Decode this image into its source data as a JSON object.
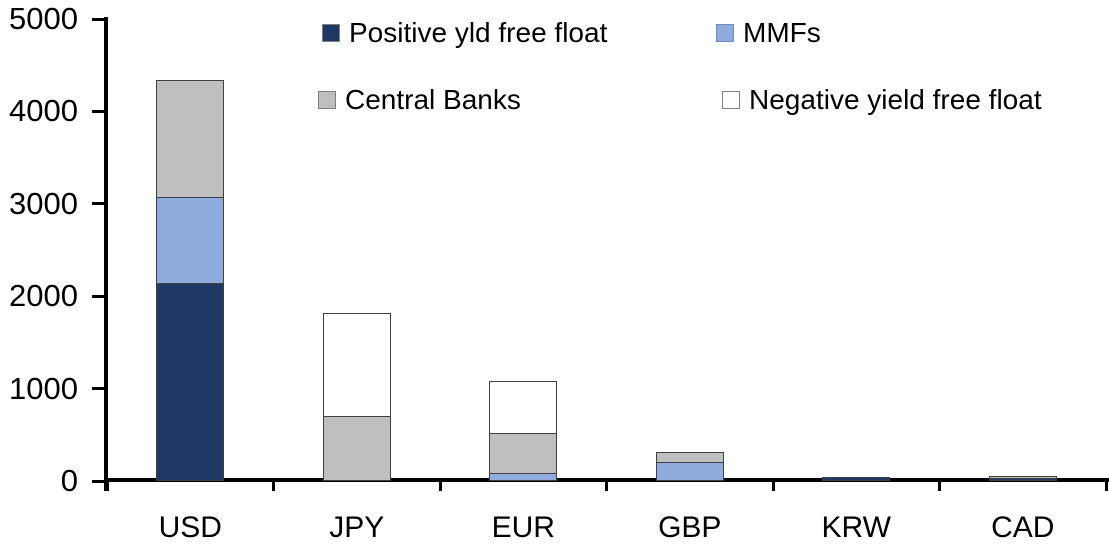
{
  "chart_data": {
    "type": "bar",
    "stacked": true,
    "title": "",
    "xlabel": "",
    "ylabel": "",
    "categories": [
      "USD",
      "JPY",
      "EUR",
      "GBP",
      "KRW",
      "CAD"
    ],
    "series": [
      {
        "name": "Positive yld free float",
        "color": "#1f3864",
        "swatch_border": "#7f7f7f",
        "values": [
          2140,
          0,
          0,
          0,
          45,
          35
        ]
      },
      {
        "name": "MMFs",
        "color": "#8faadc",
        "swatch_border": "#6b8cc7",
        "values": [
          940,
          0,
          90,
          210,
          0,
          0
        ]
      },
      {
        "name": "Central Banks",
        "color": "#bfbfbf",
        "swatch_border": "#808080",
        "values": [
          1280,
          700,
          440,
          120,
          0,
          30
        ]
      },
      {
        "name": "Negative yield free float",
        "color": "#ffffff",
        "swatch_border": "#808080",
        "values": [
          0,
          1130,
          570,
          0,
          0,
          0
        ]
      }
    ],
    "totals": [
      4360,
      1830,
      1100,
      330,
      45,
      65
    ],
    "ylim": [
      0,
      5000
    ],
    "yticks": [
      0,
      1000,
      2000,
      3000,
      4000,
      5000
    ],
    "ytick_labels": [
      "0",
      "1000",
      "2000",
      "3000",
      "4000",
      "5000"
    ],
    "grid": false,
    "legend_position": "top",
    "legend_rows": [
      [
        "Positive yld free float",
        "MMFs"
      ],
      [
        "Central Banks",
        "Negative yield free float"
      ]
    ],
    "axis_color": "#000000",
    "bar_border_color": "#404040",
    "stack_order_bottom_to_top": [
      "Positive yld free float",
      "MMFs",
      "Central Banks",
      "Negative yield free float"
    ]
  }
}
